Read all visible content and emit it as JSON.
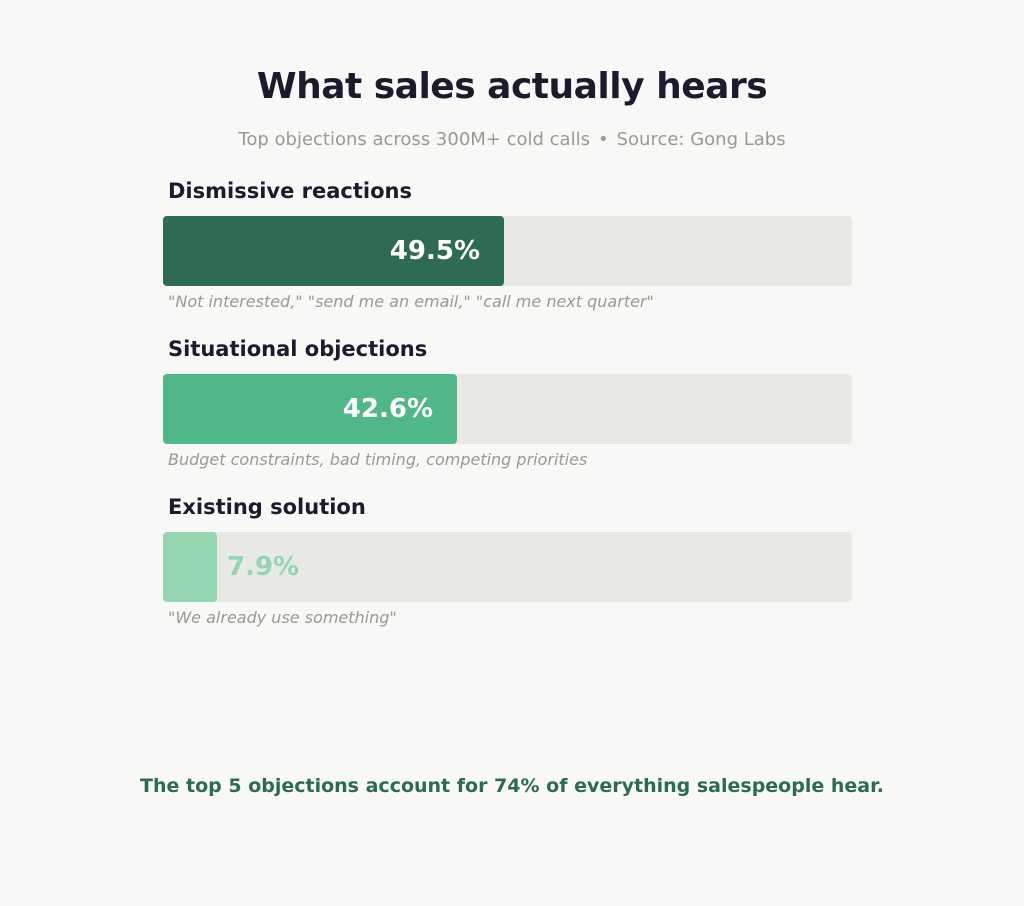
{
  "header": {
    "title": "What sales actually hears",
    "subtitle_left": "Top objections across 300M+ cold calls",
    "subtitle_sep": "•",
    "subtitle_right": "Source: Gong Labs"
  },
  "footer": {
    "text": "The top 5 objections account for 74% of everything salespeople hear."
  },
  "chart_data": {
    "type": "bar",
    "orientation": "horizontal",
    "title": "What sales actually hears",
    "subtitle": "Top objections across 300M+ cold calls • Source: Gong Labs",
    "xlim": [
      0,
      100
    ],
    "unit": "%",
    "categories": [
      "Dismissive reactions",
      "Situational objections",
      "Existing solution"
    ],
    "values": [
      49.5,
      42.6,
      7.9
    ],
    "value_labels": [
      "49.5%",
      "42.6%",
      "7.9%"
    ],
    "notes": [
      "\"Not interested,\" \"send me an email,\" \"call me next quarter\"",
      "Budget constraints, bad timing, competing priorities",
      "\"We already use something\""
    ],
    "colors": [
      "#2e6b50",
      "#52b788",
      "#95d5b2"
    ],
    "label_colors": [
      "#ffffff",
      "#ffffff",
      "#95d5b2"
    ],
    "track_color": "#e8e8e4",
    "grid": false,
    "legend": "none"
  }
}
